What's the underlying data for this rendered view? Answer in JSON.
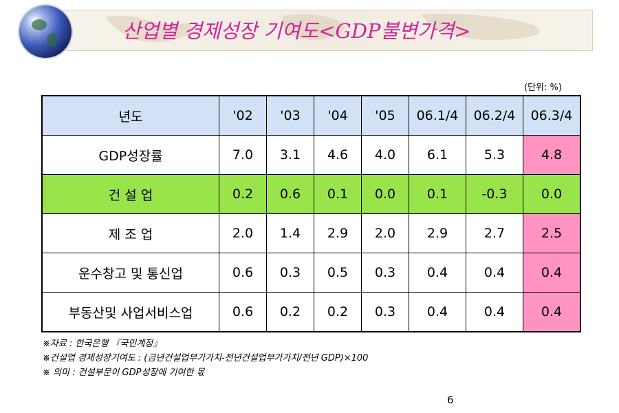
{
  "title": "산업별 경제성장 기여도<GDP불변가격>",
  "unit": "(단위: %)",
  "table": {
    "header": [
      "년도",
      "'02",
      "'03",
      "'04",
      "'05",
      "06.1/4",
      "06.2/4",
      "06.3/4"
    ],
    "rows": [
      {
        "label": "GDP성장률",
        "values": [
          "7.0",
          "3.1",
          "4.6",
          "4.0",
          "6.1",
          "5.3",
          "4.8"
        ]
      },
      {
        "label": "건 설 업",
        "values": [
          "0.2",
          "0.6",
          "0.1",
          "0.0",
          "0.1",
          "-0.3",
          "0.0"
        ]
      },
      {
        "label": "제 조 업",
        "values": [
          "2.0",
          "1.4",
          "2.9",
          "2.0",
          "2.9",
          "2.7",
          "2.5"
        ]
      },
      {
        "label": "운수창고 및 통신업",
        "values": [
          "0.6",
          "0.3",
          "0.5",
          "0.3",
          "0.4",
          "0.4",
          "0.4"
        ]
      },
      {
        "label": "부동산및 사업서비스업",
        "values": [
          "0.6",
          "0.2",
          "0.2",
          "0.3",
          "0.4",
          "0.4",
          "0.4"
        ]
      }
    ]
  },
  "notes": [
    "※자료 : 한국은행 『국민계정』",
    "※건설업 경제성장기여도 : (금년건설업부가가치-전년건설업부가가치/전년 GDP)×100",
    "※ 의미 : 건설부문이 GDP성장에 기여한 몫"
  ],
  "page_number": "6",
  "colors": {
    "title": "#d4239a",
    "header_bg": "#d2e1f6",
    "highlight_row": "#99e44a",
    "highlight_col": "#ff93c2"
  },
  "icons": {
    "logo": "globe-icon"
  }
}
